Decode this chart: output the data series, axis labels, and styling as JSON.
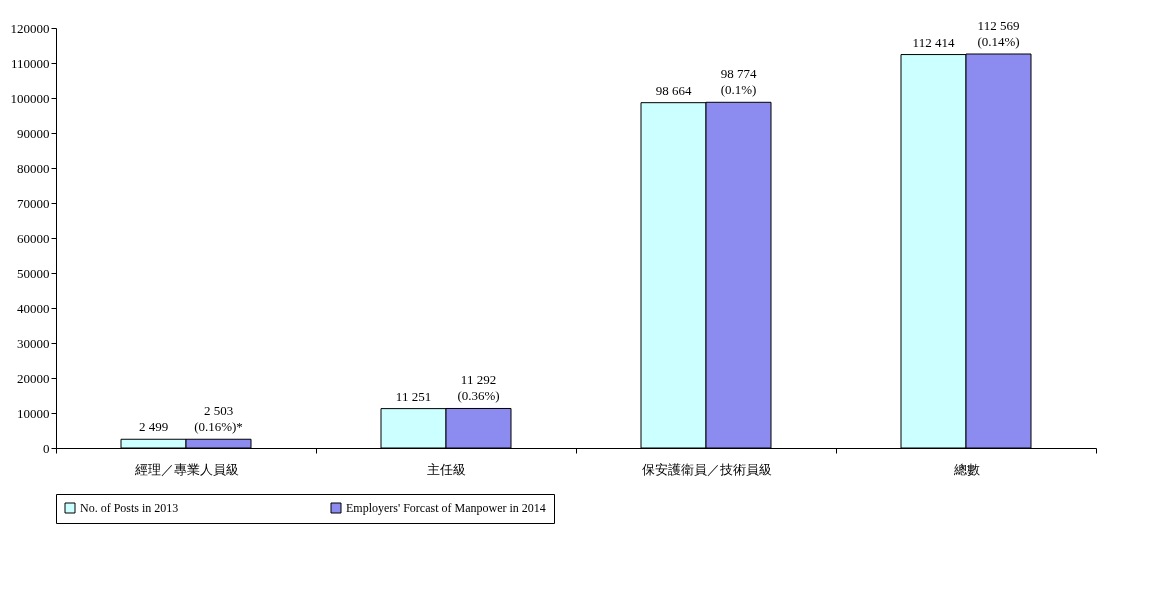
{
  "chart_data": {
    "type": "bar",
    "categories": [
      "經理／專業人員級",
      "主任級",
      "保安護衛員／技術員級",
      "總數"
    ],
    "series": [
      {
        "name": "No. of Posts in 2013",
        "color": "#ccffff",
        "values": [
          2499,
          11251,
          98664,
          112414
        ],
        "value_labels": [
          "2 499",
          "11 251",
          "98 664",
          "112 414"
        ]
      },
      {
        "name": "Employers' Forcast of Manpower in 2014",
        "color": "#8c8cf0",
        "values": [
          2503,
          11292,
          98774,
          112569
        ],
        "value_labels": [
          "2 503\n(0.16%)*",
          "11 292\n(0.36%)",
          "98 774\n(0.1%)",
          "112 569\n(0.14%)"
        ]
      }
    ],
    "ylim": [
      0,
      120000
    ],
    "yticks": [
      0,
      10000,
      20000,
      30000,
      40000,
      50000,
      60000,
      70000,
      80000,
      90000,
      100000,
      110000,
      120000
    ],
    "grid": false,
    "legend": "bottom"
  }
}
